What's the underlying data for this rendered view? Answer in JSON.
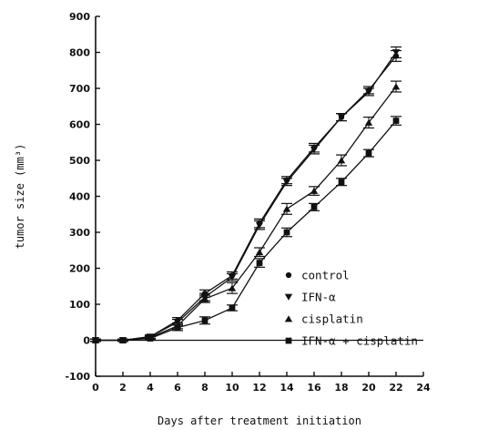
{
  "chart_data": {
    "type": "line",
    "title": "",
    "xlabel": "Days after treatment initiation",
    "ylabel": "tumor size (mm³)",
    "xlim": [
      0,
      24
    ],
    "ylim": [
      -100,
      900
    ],
    "xticks": [
      0,
      2,
      4,
      6,
      8,
      10,
      12,
      14,
      16,
      18,
      20,
      22,
      24
    ],
    "yticks": [
      -100,
      0,
      100,
      200,
      300,
      400,
      500,
      600,
      700,
      800,
      900
    ],
    "grid": false,
    "legend_position": "lower-right",
    "x": [
      0,
      2,
      4,
      6,
      8,
      10,
      12,
      14,
      16,
      18,
      20,
      22
    ],
    "series": [
      {
        "name": "control",
        "marker": "circle",
        "values": [
          0,
          0,
          10,
          55,
          130,
          180,
          325,
          445,
          535,
          620,
          695,
          790
        ],
        "errors": [
          3,
          3,
          5,
          8,
          10,
          10,
          12,
          10,
          12,
          10,
          10,
          15
        ]
      },
      {
        "name": "IFN-α",
        "marker": "triangle-down",
        "values": [
          0,
          0,
          10,
          50,
          120,
          175,
          320,
          440,
          530,
          620,
          690,
          800
        ],
        "errors": [
          3,
          3,
          5,
          8,
          10,
          10,
          12,
          10,
          12,
          10,
          10,
          15
        ]
      },
      {
        "name": "cisplatin",
        "marker": "triangle-up",
        "values": [
          0,
          0,
          8,
          40,
          115,
          145,
          245,
          365,
          415,
          500,
          605,
          705
        ],
        "errors": [
          3,
          3,
          5,
          8,
          10,
          15,
          12,
          15,
          12,
          15,
          15,
          15
        ]
      },
      {
        "name": "IFN-α + cisplatin",
        "marker": "square",
        "values": [
          0,
          0,
          5,
          35,
          55,
          90,
          215,
          300,
          370,
          440,
          520,
          610
        ],
        "errors": [
          3,
          3,
          5,
          8,
          10,
          8,
          12,
          12,
          10,
          10,
          10,
          12
        ]
      }
    ]
  }
}
